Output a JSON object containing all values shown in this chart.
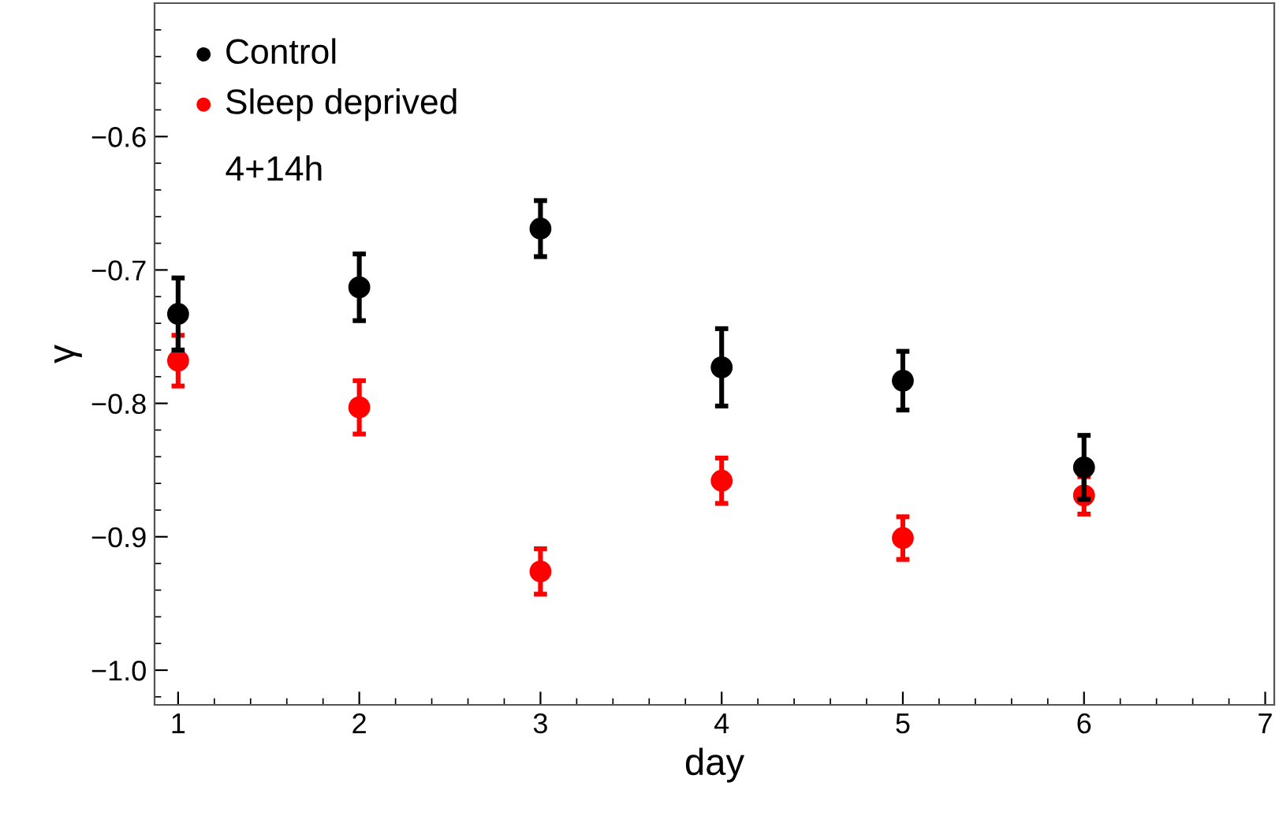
{
  "chart_data": {
    "type": "scatter",
    "xlabel": "day",
    "ylabel": "γ",
    "x": [
      1,
      2,
      3,
      4,
      5,
      6
    ],
    "xlim": [
      0.87,
      7.05
    ],
    "xticks": [
      1,
      2,
      3,
      4,
      5,
      6,
      7
    ],
    "ylim": [
      -1.026,
      -0.5
    ],
    "yticks": [
      {
        "value": -1.0,
        "label": "−1.0"
      },
      {
        "value": -0.9,
        "label": "−0.9"
      },
      {
        "value": -0.8,
        "label": "−0.8"
      },
      {
        "value": -0.7,
        "label": "−0.7"
      },
      {
        "value": -0.6,
        "label": "−0.6"
      }
    ],
    "series": [
      {
        "name": "Control",
        "color": "#000000",
        "values": [
          -0.733,
          -0.713,
          -0.669,
          -0.773,
          -0.783,
          -0.848
        ],
        "errors": [
          0.027,
          0.025,
          0.021,
          0.029,
          0.022,
          0.024
        ]
      },
      {
        "name": "Sleep deprived",
        "color": "#ff0000",
        "values": [
          -0.768,
          -0.803,
          -0.926,
          -0.858,
          -0.901,
          -0.869
        ],
        "errors": [
          0.019,
          0.02,
          0.017,
          0.017,
          0.016,
          0.014
        ]
      }
    ],
    "annotations": [
      "4+14h"
    ],
    "legend": "top left",
    "marker": "circle",
    "grid": false
  }
}
